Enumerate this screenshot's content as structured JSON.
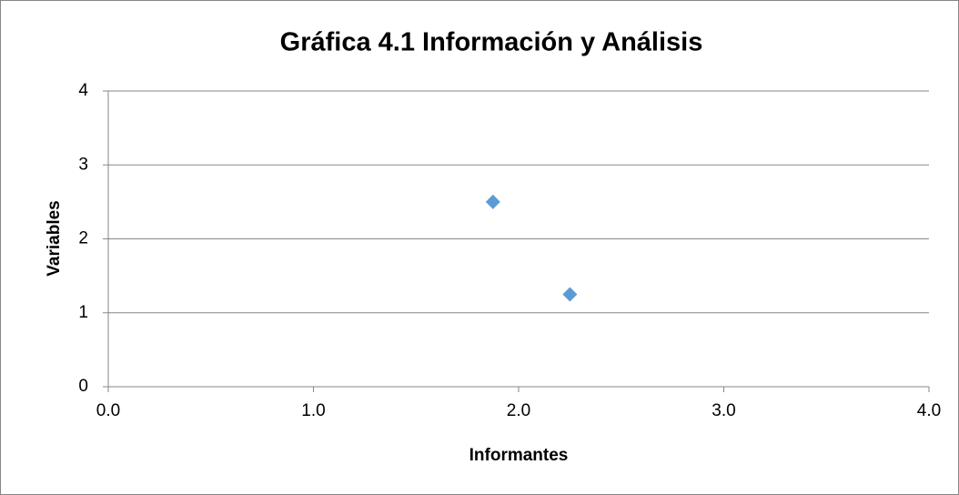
{
  "chart_data": {
    "type": "scatter",
    "title": "Gráfica 4.1 Información y Análisis",
    "x_label": "Informantes",
    "y_label": "Variables",
    "series": [
      {
        "color": "#5b9bd5",
        "x": [
          1.875,
          2.25
        ],
        "values": [
          2.5,
          1.25
        ]
      }
    ],
    "xlim": [
      0,
      4
    ],
    "xticks": [
      {
        "value": 0,
        "label": "0.0"
      },
      {
        "value": 1,
        "label": "1.0"
      },
      {
        "value": 2,
        "label": "2.0"
      },
      {
        "value": 3,
        "label": "3.0"
      },
      {
        "value": 4,
        "label": "4.0"
      }
    ],
    "ylim": [
      0,
      4
    ],
    "yticks": [
      0,
      1,
      2,
      3,
      4
    ],
    "grid": true,
    "marker": "diamond"
  }
}
